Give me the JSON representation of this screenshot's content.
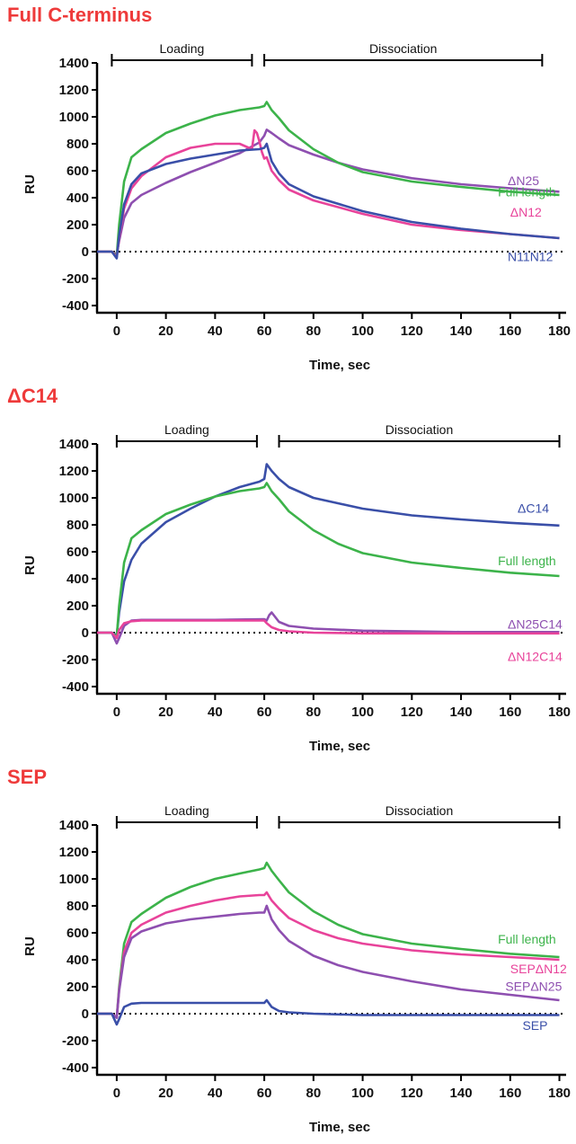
{
  "chart_data": [
    {
      "type": "line",
      "title": "Full C-terminus",
      "xlabel": "Time, sec",
      "ylabel": "RU",
      "xlim": [
        -8,
        182
      ],
      "ylim": [
        -400,
        1400
      ],
      "xticks": [
        0,
        20,
        40,
        60,
        80,
        100,
        120,
        140,
        160,
        180
      ],
      "yticks": [
        -400,
        -200,
        0,
        200,
        400,
        600,
        800,
        1000,
        1200,
        1400
      ],
      "baseline": 0,
      "phases": [
        {
          "label": "Loading",
          "start": -2,
          "end": 55
        },
        {
          "label": "Dissociation",
          "start": 60,
          "end": 173
        }
      ],
      "series": [
        {
          "name": "ΔN25",
          "color": "#8e4fb0",
          "label_pos": [
            159,
            495
          ],
          "x": [
            -8,
            -2,
            0,
            1,
            3,
            6,
            10,
            20,
            30,
            40,
            50,
            58,
            60,
            61,
            63,
            66,
            70,
            80,
            90,
            100,
            120,
            140,
            160,
            180
          ],
          "y": [
            0,
            0,
            -20,
            80,
            250,
            360,
            420,
            510,
            590,
            660,
            730,
            810,
            860,
            905,
            880,
            840,
            790,
            720,
            660,
            610,
            545,
            500,
            470,
            445
          ]
        },
        {
          "name": "Full length",
          "color": "#3cb34a",
          "label_pos": [
            155,
            410
          ],
          "x": [
            -8,
            -2,
            0,
            1,
            3,
            6,
            10,
            20,
            30,
            40,
            50,
            58,
            60,
            61,
            63,
            66,
            70,
            80,
            90,
            100,
            120,
            140,
            160,
            180
          ],
          "y": [
            0,
            0,
            -30,
            200,
            520,
            700,
            760,
            880,
            950,
            1010,
            1050,
            1070,
            1080,
            1110,
            1050,
            990,
            900,
            760,
            660,
            590,
            520,
            480,
            445,
            420
          ]
        },
        {
          "name": "ΔN12",
          "color": "#e8439a",
          "label_pos": [
            160,
            260
          ],
          "x": [
            -8,
            -2,
            0,
            1,
            3,
            6,
            10,
            20,
            30,
            40,
            50,
            55,
            56,
            57,
            58,
            59,
            60,
            61,
            63,
            66,
            70,
            80,
            100,
            120,
            140,
            160,
            180
          ],
          "y": [
            0,
            0,
            -40,
            100,
            320,
            470,
            560,
            700,
            770,
            800,
            800,
            760,
            900,
            880,
            820,
            740,
            690,
            700,
            600,
            530,
            460,
            380,
            280,
            200,
            160,
            130,
            100
          ]
        },
        {
          "name": "N11N12",
          "color": "#3a4fa8",
          "label_pos": [
            159,
            -70
          ],
          "x": [
            -8,
            -2,
            0,
            1,
            3,
            6,
            10,
            20,
            30,
            40,
            50,
            58,
            60,
            61,
            63,
            66,
            70,
            80,
            100,
            120,
            140,
            160,
            180
          ],
          "y": [
            0,
            0,
            -50,
            120,
            350,
            500,
            580,
            650,
            690,
            720,
            750,
            760,
            770,
            800,
            670,
            580,
            500,
            410,
            300,
            220,
            170,
            130,
            100
          ]
        }
      ]
    },
    {
      "type": "line",
      "title": "ΔC14",
      "xlabel": "Time, sec",
      "ylabel": "RU",
      "xlim": [
        -8,
        182
      ],
      "ylim": [
        -400,
        1400
      ],
      "xticks": [
        0,
        20,
        40,
        60,
        80,
        100,
        120,
        140,
        160,
        180
      ],
      "yticks": [
        -400,
        -200,
        0,
        200,
        400,
        600,
        800,
        1000,
        1200,
        1400
      ],
      "baseline": 0,
      "phases": [
        {
          "label": "Loading",
          "start": 0,
          "end": 57
        },
        {
          "label": "Dissociation",
          "start": 66,
          "end": 180
        }
      ],
      "series": [
        {
          "name": "ΔC14",
          "color": "#3a4fa8",
          "label_pos": [
            163,
            890
          ],
          "x": [
            -8,
            -2,
            0,
            1,
            3,
            6,
            10,
            20,
            30,
            40,
            50,
            58,
            60,
            61,
            63,
            66,
            70,
            80,
            100,
            120,
            140,
            160,
            180
          ],
          "y": [
            0,
            0,
            -20,
            150,
            380,
            540,
            660,
            820,
            920,
            1010,
            1080,
            1120,
            1140,
            1250,
            1200,
            1140,
            1080,
            1000,
            920,
            870,
            840,
            815,
            795
          ]
        },
        {
          "name": "Full length",
          "color": "#3cb34a",
          "label_pos": [
            155,
            500
          ],
          "x": [
            -8,
            -2,
            0,
            1,
            3,
            6,
            10,
            20,
            30,
            40,
            50,
            58,
            60,
            61,
            63,
            66,
            70,
            80,
            90,
            100,
            120,
            140,
            160,
            180
          ],
          "y": [
            0,
            0,
            -30,
            200,
            520,
            700,
            760,
            880,
            950,
            1010,
            1050,
            1070,
            1080,
            1110,
            1050,
            990,
            900,
            760,
            660,
            590,
            520,
            480,
            445,
            420
          ]
        },
        {
          "name": "ΔN25C14",
          "color": "#8e4fb0",
          "label_pos": [
            159,
            30
          ],
          "x": [
            -8,
            -2,
            0,
            1,
            3,
            6,
            10,
            20,
            40,
            60,
            61,
            62,
            63,
            66,
            70,
            80,
            100,
            120,
            140,
            160,
            180
          ],
          "y": [
            0,
            0,
            -80,
            -40,
            50,
            90,
            95,
            95,
            95,
            100,
            90,
            130,
            150,
            80,
            50,
            30,
            15,
            10,
            5,
            5,
            5
          ]
        },
        {
          "name": "ΔN12C14",
          "color": "#e8439a",
          "label_pos": [
            159,
            -210
          ],
          "x": [
            -8,
            -2,
            0,
            1,
            3,
            6,
            10,
            20,
            40,
            60,
            61,
            63,
            66,
            70,
            80,
            100,
            120,
            140,
            160,
            180
          ],
          "y": [
            0,
            0,
            -40,
            20,
            70,
            85,
            90,
            90,
            90,
            90,
            70,
            40,
            20,
            10,
            0,
            -5,
            -5,
            -5,
            -5,
            -5
          ]
        }
      ]
    },
    {
      "type": "line",
      "title": "SEP",
      "xlabel": "Time, sec",
      "ylabel": "RU",
      "xlim": [
        -8,
        182
      ],
      "ylim": [
        -400,
        1400
      ],
      "xticks": [
        0,
        20,
        40,
        60,
        80,
        100,
        120,
        140,
        160,
        180
      ],
      "yticks": [
        -400,
        -200,
        0,
        200,
        400,
        600,
        800,
        1000,
        1200,
        1400
      ],
      "baseline": 0,
      "phases": [
        {
          "label": "Loading",
          "start": 0,
          "end": 57
        },
        {
          "label": "Dissociation",
          "start": 66,
          "end": 180
        }
      ],
      "series": [
        {
          "name": "Full length",
          "color": "#3cb34a",
          "label_pos": [
            155,
            520
          ],
          "x": [
            -8,
            -2,
            0,
            1,
            3,
            6,
            10,
            20,
            30,
            40,
            50,
            58,
            60,
            61,
            63,
            66,
            70,
            80,
            90,
            100,
            120,
            140,
            160,
            180
          ],
          "y": [
            0,
            0,
            -30,
            200,
            520,
            680,
            740,
            860,
            940,
            1000,
            1040,
            1070,
            1080,
            1120,
            1060,
            990,
            900,
            760,
            660,
            590,
            520,
            480,
            445,
            420
          ]
        },
        {
          "name": "SEPΔN12",
          "color": "#e8439a",
          "label_pos": [
            160,
            300
          ],
          "x": [
            -8,
            -2,
            0,
            1,
            3,
            6,
            10,
            20,
            30,
            40,
            50,
            58,
            60,
            61,
            63,
            66,
            70,
            80,
            90,
            100,
            120,
            140,
            160,
            180
          ],
          "y": [
            0,
            0,
            -30,
            180,
            460,
            600,
            660,
            750,
            800,
            840,
            870,
            880,
            880,
            900,
            840,
            780,
            710,
            620,
            560,
            520,
            470,
            440,
            420,
            400
          ]
        },
        {
          "name": "SEPΔN25",
          "color": "#8e4fb0",
          "label_pos": [
            158,
            170
          ],
          "x": [
            -8,
            -2,
            0,
            1,
            3,
            6,
            10,
            20,
            30,
            40,
            50,
            58,
            60,
            61,
            63,
            66,
            70,
            80,
            90,
            100,
            120,
            140,
            160,
            180
          ],
          "y": [
            0,
            0,
            -30,
            170,
            420,
            560,
            610,
            670,
            700,
            720,
            740,
            750,
            750,
            800,
            700,
            620,
            540,
            430,
            360,
            310,
            240,
            180,
            140,
            100
          ]
        },
        {
          "name": "SEP",
          "color": "#3a4fa8",
          "label_pos": [
            165,
            -120
          ],
          "x": [
            -8,
            -2,
            0,
            1,
            3,
            6,
            10,
            20,
            40,
            60,
            61,
            63,
            66,
            70,
            80,
            100,
            140,
            180
          ],
          "y": [
            0,
            0,
            -80,
            -40,
            50,
            75,
            80,
            80,
            80,
            80,
            100,
            50,
            20,
            10,
            0,
            -10,
            -10,
            -10
          ]
        }
      ]
    }
  ]
}
